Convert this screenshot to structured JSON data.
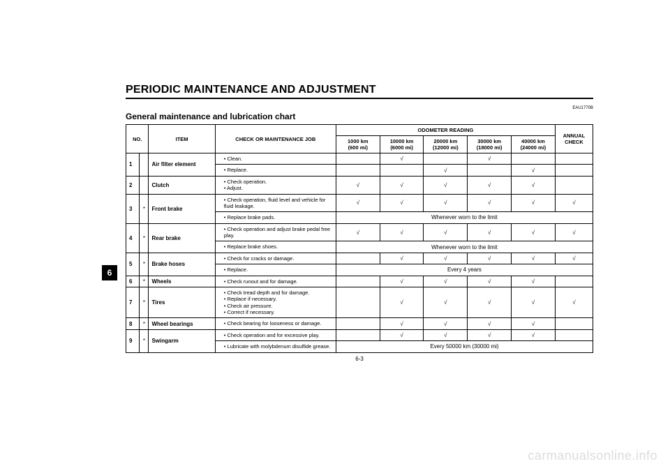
{
  "page": {
    "heading": "PERIODIC MAINTENANCE AND ADJUSTMENT",
    "ref_code": "EAU1770B",
    "subheading": "General maintenance and lubrication chart",
    "page_number": "6-3",
    "side_tab": "6",
    "watermark": "carmanualsonline.info"
  },
  "table": {
    "headers": {
      "no": "NO.",
      "item": "ITEM",
      "job": "CHECK OR MAINTENANCE JOB",
      "odo_group": "ODOMETER READING",
      "annual": "ANNUAL CHECK",
      "odo": [
        {
          "top": "1000 km",
          "bot": "(600 mi)"
        },
        {
          "top": "10000 km",
          "bot": "(6000 mi)"
        },
        {
          "top": "20000 km",
          "bot": "(12000 mi)"
        },
        {
          "top": "30000 km",
          "bot": "(18000 mi)"
        },
        {
          "top": "40000 km",
          "bot": "(24000 mi)"
        }
      ]
    },
    "check_mark": "√",
    "notes": {
      "worn_limit": "Whenever worn to the limit",
      "every_4_years": "Every 4 years",
      "every_50000": "Every 50000 km (30000 mi)"
    },
    "rows": [
      {
        "no": "1",
        "star": "",
        "item": "Air filter element",
        "sub": [
          {
            "job": [
              "Clean."
            ],
            "marks": [
              "",
              "√",
              "",
              "√",
              ""
            ],
            "annual": ""
          },
          {
            "job": [
              "Replace."
            ],
            "marks": [
              "",
              "",
              "√",
              "",
              "√"
            ],
            "annual": ""
          }
        ]
      },
      {
        "no": "2",
        "star": "",
        "item": "Clutch",
        "sub": [
          {
            "job": [
              "Check operation.",
              "Adjust."
            ],
            "marks": [
              "√",
              "√",
              "√",
              "√",
              "√"
            ],
            "annual": ""
          }
        ]
      },
      {
        "no": "3",
        "star": "*",
        "item": "Front brake",
        "sub": [
          {
            "job": [
              "Check operation, fluid level and vehicle for fluid leakage."
            ],
            "marks": [
              "√",
              "√",
              "√",
              "√",
              "√"
            ],
            "annual": "√"
          },
          {
            "job": [
              "Replace brake pads."
            ],
            "span_note": "worn_limit"
          }
        ]
      },
      {
        "no": "4",
        "star": "*",
        "item": "Rear brake",
        "sub": [
          {
            "job": [
              "Check operation and adjust brake pedal free play."
            ],
            "marks": [
              "√",
              "√",
              "√",
              "√",
              "√"
            ],
            "annual": "√"
          },
          {
            "job": [
              "Replace brake shoes."
            ],
            "span_note": "worn_limit"
          }
        ]
      },
      {
        "no": "5",
        "star": "*",
        "item": "Brake hoses",
        "sub": [
          {
            "job": [
              "Check for cracks or damage."
            ],
            "marks": [
              "",
              "√",
              "√",
              "√",
              "√"
            ],
            "annual": "√"
          },
          {
            "job": [
              "Replace."
            ],
            "span_note": "every_4_years"
          }
        ]
      },
      {
        "no": "6",
        "star": "*",
        "item": "Wheels",
        "sub": [
          {
            "job": [
              "Check runout and for damage."
            ],
            "marks": [
              "",
              "√",
              "√",
              "√",
              "√"
            ],
            "annual": ""
          }
        ]
      },
      {
        "no": "7",
        "star": "*",
        "item": "Tires",
        "sub": [
          {
            "job": [
              "Check tread depth and for damage.",
              "Replace if necessary.",
              "Check air pressure.",
              "Correct if necessary."
            ],
            "marks": [
              "",
              "√",
              "√",
              "√",
              "√"
            ],
            "annual": "√"
          }
        ]
      },
      {
        "no": "8",
        "star": "*",
        "item": "Wheel bearings",
        "sub": [
          {
            "job": [
              "Check bearing for looseness or damage."
            ],
            "marks": [
              "",
              "√",
              "√",
              "√",
              "√"
            ],
            "annual": ""
          }
        ]
      },
      {
        "no": "9",
        "star": "*",
        "item": "Swingarm",
        "sub": [
          {
            "job": [
              "Check operation and for excessive play."
            ],
            "marks": [
              "",
              "√",
              "√",
              "√",
              "√"
            ],
            "annual": ""
          },
          {
            "job": [
              "Lubricate with molybdenum disulfide grease."
            ],
            "span_note": "every_50000"
          }
        ]
      }
    ]
  }
}
